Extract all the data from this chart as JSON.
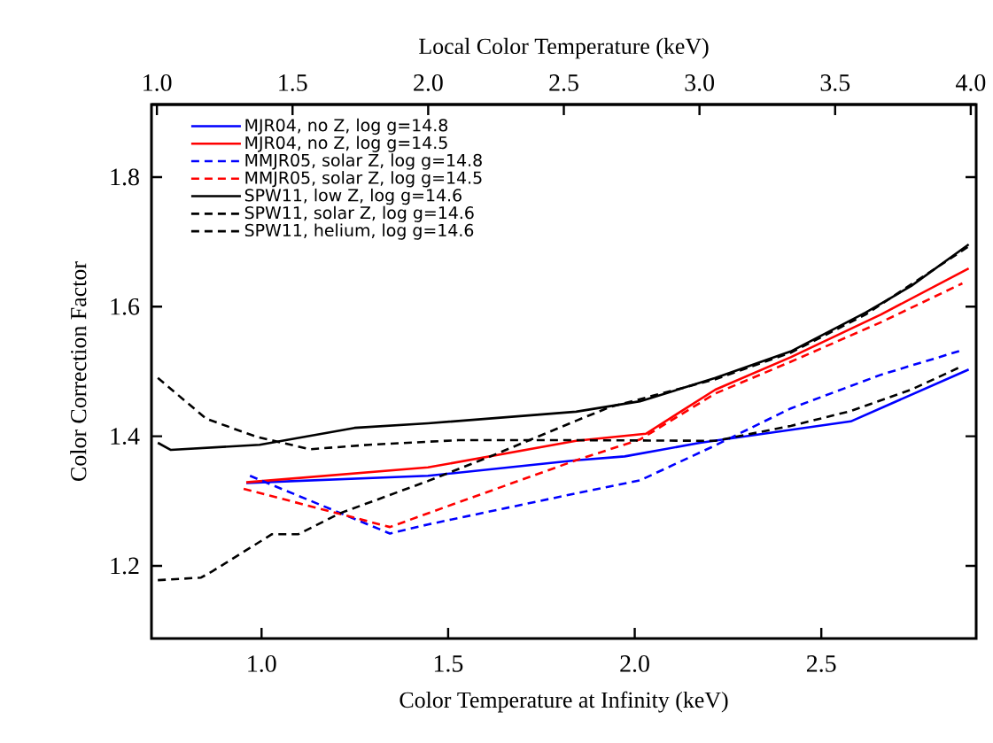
{
  "chart_data": {
    "type": "line",
    "xlabel": "Color Temperature at Infinity (keV)",
    "ylabel": "Color Correction Factor",
    "x2label": "Local Color Temperature (keV)",
    "xlim": [
      0.705,
      2.915
    ],
    "xticks": [
      {
        "value": 1.0,
        "label": "1.0"
      },
      1.5,
      {
        "value": 2.0,
        "label": "2.0"
      },
      2.5
    ],
    "x2lim": [
      0.98,
      4.02
    ],
    "x2ticks": [
      {
        "value": 1.0,
        "label": "1.0"
      },
      1.5,
      {
        "value": 2.0,
        "label": "2.0"
      },
      2.5,
      {
        "value": 3.0,
        "label": "3.0"
      },
      3.5,
      {
        "value": 4.0,
        "label": "4.0"
      }
    ],
    "ylim": [
      1.088,
      1.912
    ],
    "yticks": [
      1.2,
      1.4,
      1.6,
      1.8
    ],
    "legend": "top left",
    "series": [
      {
        "name": "MJR04, no Z, log g=14.8",
        "color": "#0000ff",
        "line_style": "solid",
        "x": [
          0.959,
          1.446,
          1.843,
          1.973,
          2.175,
          2.579,
          2.895
        ],
        "values": [
          1.328,
          1.339,
          1.363,
          1.369,
          1.39,
          1.423,
          1.503
        ]
      },
      {
        "name": "MJR04, no Z, log g=14.5",
        "color": "#ff0000",
        "line_style": "solid",
        "x": [
          0.959,
          1.446,
          1.843,
          2.03,
          2.216,
          2.418,
          2.66,
          2.895
        ],
        "values": [
          1.329,
          1.352,
          1.393,
          1.404,
          1.472,
          1.522,
          1.588,
          1.659
        ]
      },
      {
        "name": "MMJR05, solar Z, log g=14.8",
        "color": "#0000ff",
        "line_style": "dashed",
        "x": [
          0.969,
          1.344,
          1.446,
          1.843,
          2.014,
          2.216,
          2.418,
          2.66,
          2.878
        ],
        "values": [
          1.339,
          1.25,
          1.264,
          1.312,
          1.332,
          1.386,
          1.443,
          1.495,
          1.533
        ]
      },
      {
        "name": "MMJR05, solar Z, log g=14.5",
        "color": "#ff0000",
        "line_style": "dashed",
        "x": [
          0.952,
          1.344,
          1.527,
          1.843,
          2.014,
          2.216,
          2.418,
          2.66,
          2.878
        ],
        "values": [
          1.319,
          1.26,
          1.298,
          1.363,
          1.395,
          1.466,
          1.515,
          1.576,
          1.636
        ]
      },
      {
        "name": "SPW11, low Z, log g=14.6",
        "color": "#000000",
        "line_style": "solid",
        "x": [
          0.722,
          0.757,
          0.995,
          1.249,
          1.446,
          1.843,
          2.014,
          2.216,
          2.418,
          2.619,
          2.741,
          2.895
        ],
        "values": [
          1.39,
          1.379,
          1.387,
          1.413,
          1.42,
          1.438,
          1.454,
          1.49,
          1.531,
          1.591,
          1.632,
          1.696
        ]
      },
      {
        "name": "SPW11, solar Z, log g=14.6",
        "color": "#000000",
        "line_style": "dashed",
        "x": [
          0.722,
          0.838,
          0.869,
          1.028,
          1.099,
          1.209,
          1.446,
          1.605,
          1.843,
          1.933,
          2.216,
          2.418,
          2.619,
          2.895
        ],
        "values": [
          1.178,
          1.182,
          1.192,
          1.249,
          1.249,
          1.281,
          1.331,
          1.367,
          1.424,
          1.445,
          1.488,
          1.529,
          1.588,
          1.693
        ]
      },
      {
        "name": "SPW11, helium, log g=14.6",
        "color": "#000000",
        "line_style": "dashed",
        "x": [
          0.722,
          0.852,
          0.988,
          1.13,
          1.289,
          1.527,
          1.843,
          2.216,
          2.418,
          2.579,
          2.741,
          2.869
        ],
        "values": [
          1.49,
          1.427,
          1.399,
          1.38,
          1.387,
          1.394,
          1.394,
          1.393,
          1.416,
          1.439,
          1.472,
          1.506
        ]
      }
    ]
  }
}
